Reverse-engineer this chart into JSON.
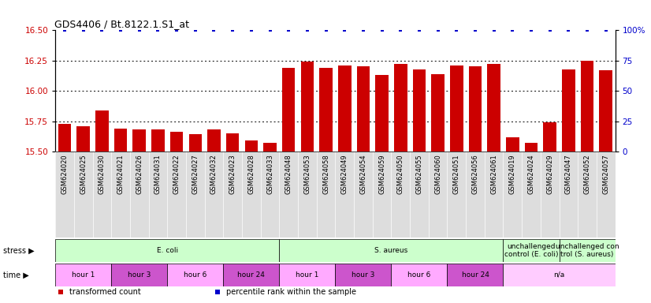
{
  "title": "GDS4406 / Bt.8122.1.S1_at",
  "samples": [
    "GSM624020",
    "GSM624025",
    "GSM624030",
    "GSM624021",
    "GSM624026",
    "GSM624031",
    "GSM624022",
    "GSM624027",
    "GSM624032",
    "GSM624023",
    "GSM624028",
    "GSM624033",
    "GSM624048",
    "GSM624053",
    "GSM624058",
    "GSM624049",
    "GSM624054",
    "GSM624059",
    "GSM624050",
    "GSM624055",
    "GSM624060",
    "GSM624051",
    "GSM624056",
    "GSM624061",
    "GSM624019",
    "GSM624024",
    "GSM624029",
    "GSM624047",
    "GSM624052",
    "GSM624057"
  ],
  "bar_values": [
    15.73,
    15.71,
    15.84,
    15.69,
    15.68,
    15.68,
    15.66,
    15.64,
    15.68,
    15.65,
    15.59,
    15.57,
    16.19,
    16.24,
    16.19,
    16.21,
    16.2,
    16.13,
    16.22,
    16.18,
    16.14,
    16.21,
    16.2,
    16.22,
    15.62,
    15.57,
    15.74,
    16.18,
    16.25,
    16.17
  ],
  "percentile_values": [
    100,
    100,
    100,
    100,
    100,
    100,
    100,
    100,
    100,
    100,
    100,
    100,
    100,
    100,
    100,
    100,
    100,
    100,
    100,
    100,
    100,
    100,
    100,
    100,
    100,
    100,
    100,
    100,
    100,
    100
  ],
  "bar_color": "#cc0000",
  "percentile_color": "#0000cc",
  "ylim_left": [
    15.5,
    16.5
  ],
  "ylim_right": [
    0,
    100
  ],
  "yticks_left": [
    15.5,
    15.75,
    16.0,
    16.25,
    16.5
  ],
  "yticks_right": [
    0,
    25,
    50,
    75,
    100
  ],
  "grid_ticks": [
    15.75,
    16.0,
    16.25
  ],
  "stress_groups": [
    {
      "label": "E. coli",
      "start": 0,
      "end": 12,
      "color": "#ccffcc"
    },
    {
      "label": "S. aureus",
      "start": 12,
      "end": 24,
      "color": "#ccffcc"
    },
    {
      "label": "unchallenged\ncontrol (E. coli)",
      "start": 24,
      "end": 27,
      "color": "#ccffcc"
    },
    {
      "label": "unchallenged con\ntrol (S. aureus)",
      "start": 27,
      "end": 30,
      "color": "#ccffcc"
    }
  ],
  "time_groups": [
    {
      "label": "hour 1",
      "start": 0,
      "end": 3,
      "color": "#ffaaff"
    },
    {
      "label": "hour 3",
      "start": 3,
      "end": 6,
      "color": "#cc55cc"
    },
    {
      "label": "hour 6",
      "start": 6,
      "end": 9,
      "color": "#ffaaff"
    },
    {
      "label": "hour 24",
      "start": 9,
      "end": 12,
      "color": "#cc55cc"
    },
    {
      "label": "hour 1",
      "start": 12,
      "end": 15,
      "color": "#ffaaff"
    },
    {
      "label": "hour 3",
      "start": 15,
      "end": 18,
      "color": "#cc55cc"
    },
    {
      "label": "hour 6",
      "start": 18,
      "end": 21,
      "color": "#ffaaff"
    },
    {
      "label": "hour 24",
      "start": 21,
      "end": 24,
      "color": "#cc55cc"
    },
    {
      "label": "n/a",
      "start": 24,
      "end": 30,
      "color": "#ffccff"
    }
  ],
  "legend_items": [
    {
      "label": "transformed count",
      "color": "#cc0000"
    },
    {
      "label": "percentile rank within the sample",
      "color": "#0000cc"
    }
  ],
  "bg_color": "#ffffff",
  "tick_label_color_left": "#cc0000",
  "tick_label_color_right": "#0000cc",
  "xtick_bg_color": "#dddddd"
}
